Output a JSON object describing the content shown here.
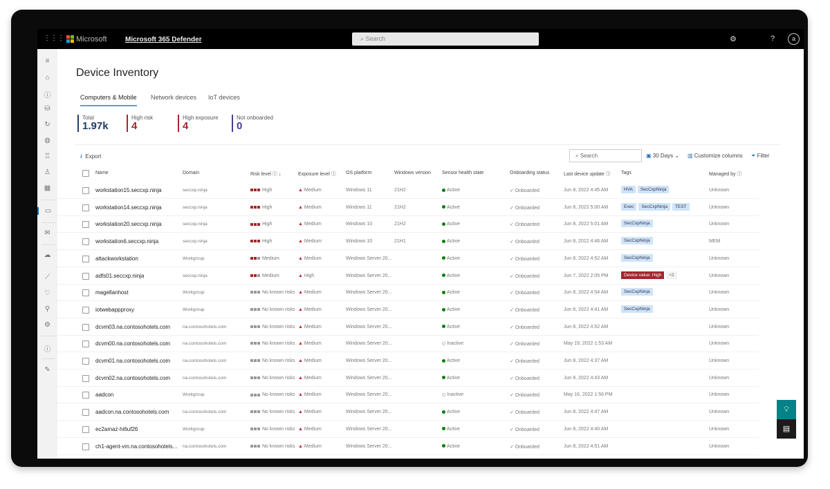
{
  "topbar": {
    "brand": "Microsoft",
    "product": "Microsoft 365 Defender",
    "search_placeholder": "Search",
    "avatar": "a"
  },
  "page": {
    "title": "Device Inventory"
  },
  "tabs": [
    {
      "label": "Computers & Mobile",
      "selected": true
    },
    {
      "label": "Network devices"
    },
    {
      "label": "IoT devices"
    }
  ],
  "kpis": [
    {
      "label": "Total",
      "value": "1.97k",
      "color": "#1f3b63"
    },
    {
      "label": "High risk",
      "value": "4",
      "color": "#a4262c"
    },
    {
      "label": "High exposure",
      "value": "4",
      "color": "#a4262c"
    },
    {
      "label": "Not onboarded",
      "value": "0",
      "color": "#4b3b8f"
    }
  ],
  "toolbar": {
    "export": "Export",
    "search_placeholder": "Search",
    "date_range": "30 Days",
    "customize": "Customize columns",
    "filter": "Filter"
  },
  "columns": [
    "Name",
    "Domain",
    "Risk level",
    "Exposure level",
    "OS platform",
    "Windows version",
    "Sensor health state",
    "Onboarding status",
    "Last device update",
    "Tags",
    "Managed by"
  ],
  "rows": [
    {
      "name": "workstation15.seccxp.ninja",
      "domain": "seccxp.ninja",
      "risk": "High",
      "exposure": "Medium",
      "os": "Windows 11",
      "ver": "21H2",
      "sensor": "Active",
      "onboard": "Onboarded",
      "updated": "Jun 8, 2022 4:45 AM",
      "tags": [
        "HVA",
        "SecCxpNinja"
      ],
      "managed": "Unknown"
    },
    {
      "name": "workstation14.seccxp.ninja",
      "domain": "seccxp.ninja",
      "risk": "High",
      "exposure": "Medium",
      "os": "Windows 11",
      "ver": "21H2",
      "sensor": "Active",
      "onboard": "Onboarded",
      "updated": "Jun 8, 2022 5:00 AM",
      "tags": [
        "Exec",
        "SecCxpNinja",
        "TEST"
      ],
      "managed": "Unknown"
    },
    {
      "name": "workstation20.seccxp.ninja",
      "domain": "seccxp.ninja",
      "risk": "High",
      "exposure": "Medium",
      "os": "Windows 10",
      "ver": "21H2",
      "sensor": "Active",
      "onboard": "Onboarded",
      "updated": "Jun 8, 2022 5:01 AM",
      "tags": [
        "SecCxpNinja"
      ],
      "managed": "Unknown"
    },
    {
      "name": "workstation6.seccxp.ninja",
      "domain": "seccxp.ninja",
      "risk": "High",
      "exposure": "Medium",
      "os": "Windows 10",
      "ver": "21H1",
      "sensor": "Active",
      "onboard": "Onboarded",
      "updated": "Jun 8, 2022 4:46 AM",
      "tags": [
        "SecCxpNinja"
      ],
      "managed": "MEM"
    },
    {
      "name": "attackworkstation",
      "domain": "Workgroup",
      "risk": "Medium",
      "exposure": "Medium",
      "os": "Windows Server 20...",
      "ver": "",
      "sensor": "Active",
      "onboard": "Onboarded",
      "updated": "Jun 8, 2022 4:52 AM",
      "tags": [
        "SecCxpNinja"
      ],
      "managed": "Unknown"
    },
    {
      "name": "adfs01.seccxp.ninja",
      "domain": "seccxp.ninja",
      "risk": "Medium",
      "exposure": "High",
      "os": "Windows Server 20...",
      "ver": "",
      "sensor": "Active",
      "onboard": "Onboarded",
      "updated": "Jun 7, 2022 2:05 PM",
      "tags": [
        "Device value: High"
      ],
      "tags_more": "+2",
      "managed": "Unknown"
    },
    {
      "name": "magellanhost",
      "domain": "Workgroup",
      "risk": "No known risks",
      "exposure": "Medium",
      "os": "Windows Server 20...",
      "ver": "",
      "sensor": "Active",
      "onboard": "Onboarded",
      "updated": "Jun 8, 2022 4:54 AM",
      "tags": [
        "SecCxpNinja"
      ],
      "managed": "Unknown"
    },
    {
      "name": "iotwebappproxy",
      "domain": "Workgroup",
      "risk": "No known risks",
      "exposure": "Medium",
      "os": "Windows Server 20...",
      "ver": "",
      "sensor": "Active",
      "onboard": "Onboarded",
      "updated": "Jun 8, 2022 4:41 AM",
      "tags": [
        "SecCxpNinja"
      ],
      "managed": "Unknown"
    },
    {
      "name": "dcvm03.na.contosohotels.com",
      "domain": "na.contosohotels.com",
      "risk": "No known risks",
      "exposure": "Medium",
      "os": "Windows Server 20...",
      "ver": "",
      "sensor": "Active",
      "onboard": "Onboarded",
      "updated": "Jun 8, 2022 4:52 AM",
      "tags": [],
      "managed": "Unknown"
    },
    {
      "name": "dcvm00.na.contosohotels.com",
      "domain": "na.contosohotels.com",
      "risk": "No known risks",
      "exposure": "Medium",
      "os": "Windows Server 20...",
      "ver": "",
      "sensor": "Inactive",
      "onboard": "Onboarded",
      "updated": "May 19, 2022 1:53 AM",
      "tags": [],
      "managed": "Unknown"
    },
    {
      "name": "dcvm01.na.contosohotels.com",
      "domain": "na.contosohotels.com",
      "risk": "No known risks",
      "exposure": "Medium",
      "os": "Windows Server 20...",
      "ver": "",
      "sensor": "Active",
      "onboard": "Onboarded",
      "updated": "Jun 8, 2022 4:37 AM",
      "tags": [],
      "managed": "Unknown"
    },
    {
      "name": "dcvm02.na.contosohotels.com",
      "domain": "na.contosohotels.com",
      "risk": "No known risks",
      "exposure": "Medium",
      "os": "Windows Server 20...",
      "ver": "",
      "sensor": "Active",
      "onboard": "Onboarded",
      "updated": "Jun 8, 2022 4:43 AM",
      "tags": [],
      "managed": "Unknown"
    },
    {
      "name": "aadcon",
      "domain": "Workgroup",
      "risk": "No known risks",
      "exposure": "Medium",
      "os": "Windows Server 20...",
      "ver": "",
      "sensor": "Inactive",
      "onboard": "Onboarded",
      "updated": "May 16, 2022 1:56 PM",
      "tags": [],
      "managed": "Unknown"
    },
    {
      "name": "aadcon.na.contosohotels.com",
      "domain": "na.contosohotels.com",
      "risk": "No known risks",
      "exposure": "Medium",
      "os": "Windows Server 20...",
      "ver": "",
      "sensor": "Active",
      "onboard": "Onboarded",
      "updated": "Jun 8, 2022 4:47 AM",
      "tags": [],
      "managed": "Unknown"
    },
    {
      "name": "ec2amaz-hi6uf26",
      "domain": "Workgroup",
      "risk": "No known risks",
      "exposure": "Medium",
      "os": "Windows Server 20...",
      "ver": "",
      "sensor": "Active",
      "onboard": "Onboarded",
      "updated": "Jun 8, 2022 4:40 AM",
      "tags": [],
      "managed": "Unknown"
    },
    {
      "name": "ch1-agent-vm.na.contosohotels...",
      "domain": "na.contosohotels.com",
      "risk": "No known risks",
      "exposure": "Medium",
      "os": "Windows Server 20...",
      "ver": "",
      "sensor": "Active",
      "onboard": "Onboarded",
      "updated": "Jun 8, 2022 4:51 AM",
      "tags": [],
      "managed": "Unknown"
    }
  ],
  "colors": {
    "risk_high": "#a4262c",
    "risk_none": "#999999",
    "active": "#107c10",
    "tag": "#cfe4f7",
    "fab_teal": "#038387"
  }
}
